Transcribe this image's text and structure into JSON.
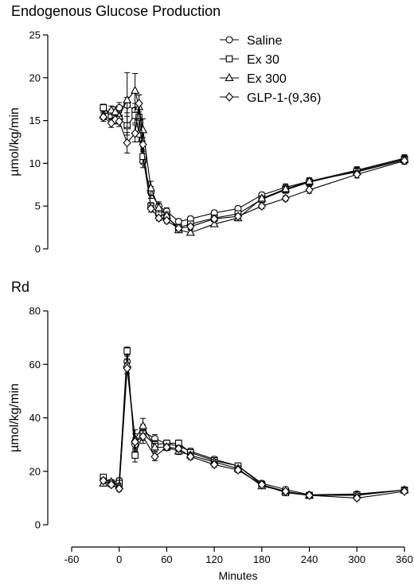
{
  "chart_data": [
    {
      "type": "line",
      "title": "Endogenous Glucose Production",
      "ylabel": "µmol/kg/min",
      "xlabel": "",
      "ylim": [
        0,
        25
      ],
      "yticks": [
        0,
        5,
        10,
        15,
        20,
        25
      ],
      "xlim": [
        -60,
        360
      ],
      "xticks": [],
      "legend": "top-right",
      "grid": false,
      "error_bars": true,
      "series": [
        {
          "name": "Saline",
          "marker": "circle",
          "x": [
            -20,
            -10,
            -5,
            0,
            10,
            20,
            25,
            30,
            40,
            50,
            60,
            75,
            90,
            120,
            150,
            180,
            210,
            240,
            300,
            360
          ],
          "y": [
            16.4,
            15.8,
            15.6,
            16.5,
            16.8,
            16.2,
            13.4,
            10.2,
            6.6,
            5.0,
            4.4,
            3.2,
            3.5,
            4.2,
            4.7,
            6.3,
            7.2,
            7.9,
            9.2,
            10.6
          ],
          "err": [
            0.5,
            0.5,
            0.5,
            0.6,
            0.9,
            0.8,
            0.9,
            0.7,
            0.7,
            0.5,
            0.4,
            0.3,
            0.3,
            0.3,
            0.3,
            0.3,
            0.4,
            0.4,
            0.4,
            0.4
          ]
        },
        {
          "name": "Ex 30",
          "marker": "square",
          "x": [
            -20,
            -10,
            -5,
            0,
            10,
            20,
            25,
            30,
            40,
            50,
            60,
            75,
            90,
            120,
            150,
            180,
            210,
            240,
            300,
            360
          ],
          "y": [
            16.5,
            15.6,
            15.5,
            15.3,
            14.4,
            15.6,
            15.4,
            10.8,
            5.0,
            4.2,
            3.7,
            2.5,
            2.9,
            3.6,
            4.1,
            5.8,
            6.9,
            7.8,
            9.1,
            10.5
          ],
          "err": [
            0.4,
            0.5,
            0.6,
            0.6,
            1.1,
            0.9,
            0.9,
            0.8,
            0.4,
            0.4,
            0.3,
            0.3,
            0.3,
            0.3,
            0.3,
            0.3,
            0.4,
            0.4,
            0.4,
            0.4
          ]
        },
        {
          "name": "Ex 300",
          "marker": "triangle",
          "x": [
            -20,
            -10,
            -5,
            0,
            10,
            20,
            25,
            30,
            40,
            50,
            60,
            75,
            90,
            120,
            150,
            180,
            210,
            240,
            300,
            360
          ],
          "y": [
            15.6,
            16.2,
            16.0,
            15.5,
            17.4,
            18.5,
            16.6,
            13.9,
            7.1,
            4.8,
            3.9,
            2.2,
            1.9,
            2.9,
            3.6,
            5.9,
            7.0,
            7.9,
            9.0,
            10.4
          ],
          "err": [
            0.5,
            0.5,
            0.6,
            0.6,
            3.2,
            2.0,
            1.4,
            1.3,
            0.8,
            0.5,
            0.4,
            0.3,
            0.3,
            0.3,
            0.3,
            0.3,
            0.4,
            0.4,
            0.4,
            0.4
          ]
        },
        {
          "name": "GLP-1-(9,36)",
          "marker": "diamond",
          "x": [
            -20,
            -10,
            -5,
            0,
            10,
            20,
            25,
            30,
            40,
            50,
            60,
            75,
            90,
            120,
            150,
            180,
            210,
            240,
            300,
            360
          ],
          "y": [
            15.4,
            14.7,
            15.1,
            14.9,
            12.4,
            13.5,
            17.0,
            12.2,
            4.7,
            3.6,
            3.3,
            2.4,
            2.6,
            3.5,
            3.8,
            5.0,
            5.9,
            6.9,
            8.7,
            10.3
          ],
          "err": [
            0.5,
            0.5,
            0.5,
            0.6,
            1.2,
            1.0,
            1.0,
            0.8,
            0.4,
            0.3,
            0.3,
            0.3,
            0.3,
            0.3,
            0.3,
            0.3,
            0.3,
            0.4,
            0.4,
            0.4
          ]
        }
      ]
    },
    {
      "type": "line",
      "title": "Rd",
      "ylabel": "µmol/kg/min",
      "xlabel": "Minutes",
      "ylim": [
        0,
        80
      ],
      "yticks": [
        0,
        20,
        40,
        60,
        80
      ],
      "xlim": [
        -60,
        360
      ],
      "xticks": [
        -60,
        0,
        60,
        120,
        180,
        240,
        300,
        360
      ],
      "grid": false,
      "error_bars": true,
      "series": [
        {
          "name": "Saline",
          "marker": "circle",
          "x": [
            -20,
            -10,
            0,
            10,
            20,
            30,
            45,
            60,
            75,
            90,
            120,
            150,
            180,
            210,
            240,
            300,
            360
          ],
          "y": [
            17.2,
            15.8,
            16.5,
            61.0,
            30.0,
            35.0,
            32.2,
            30.3,
            29.5,
            27.5,
            24.5,
            22.0,
            15.5,
            13.2,
            11.2,
            11.5,
            13.0
          ],
          "err": [
            1.0,
            0.9,
            1.0,
            2.0,
            2.5,
            2.5,
            1.5,
            1.2,
            1.2,
            1.1,
            1.0,
            1.0,
            0.9,
            0.8,
            0.8,
            0.8,
            0.8
          ]
        },
        {
          "name": "Ex 30",
          "marker": "square",
          "x": [
            -20,
            -10,
            0,
            10,
            20,
            30,
            45,
            60,
            75,
            90,
            120,
            150,
            180,
            210,
            240,
            300,
            360
          ],
          "y": [
            17.8,
            15.5,
            15.5,
            65.0,
            26.0,
            34.0,
            30.0,
            30.5,
            30.5,
            27.0,
            24.0,
            22.0,
            15.0,
            12.0,
            11.0,
            11.2,
            13.0
          ],
          "err": [
            1.0,
            0.9,
            1.0,
            1.5,
            2.5,
            2.5,
            1.5,
            1.2,
            1.2,
            1.1,
            1.0,
            1.0,
            0.9,
            0.8,
            0.8,
            0.8,
            0.8
          ]
        },
        {
          "name": "Ex 300",
          "marker": "triangle",
          "x": [
            -20,
            -10,
            0,
            10,
            20,
            30,
            45,
            60,
            75,
            90,
            120,
            150,
            180,
            210,
            240,
            300,
            360
          ],
          "y": [
            15.5,
            16.0,
            14.5,
            60.0,
            32.0,
            37.0,
            29.0,
            29.0,
            27.5,
            26.0,
            23.5,
            21.0,
            14.5,
            12.5,
            11.0,
            11.0,
            13.0
          ],
          "err": [
            1.0,
            0.9,
            1.0,
            2.0,
            3.5,
            2.8,
            1.5,
            1.2,
            1.2,
            1.1,
            1.0,
            1.0,
            0.9,
            0.8,
            0.8,
            0.8,
            0.8
          ]
        },
        {
          "name": "GLP-1-(9,36)",
          "marker": "diamond",
          "x": [
            -20,
            -10,
            0,
            10,
            20,
            30,
            45,
            60,
            75,
            90,
            120,
            150,
            180,
            210,
            240,
            300,
            360
          ],
          "y": [
            16.5,
            15.0,
            13.5,
            58.5,
            31.0,
            33.0,
            25.5,
            29.0,
            28.5,
            25.5,
            22.5,
            20.5,
            15.0,
            12.5,
            11.0,
            10.0,
            12.5
          ],
          "err": [
            1.0,
            0.9,
            1.0,
            2.0,
            3.0,
            2.5,
            1.5,
            1.2,
            1.2,
            1.1,
            1.0,
            1.0,
            0.9,
            0.8,
            0.8,
            0.8,
            0.8
          ]
        }
      ]
    }
  ]
}
